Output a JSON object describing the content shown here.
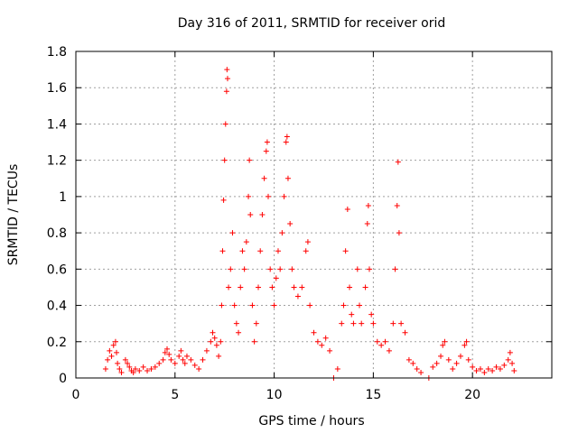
{
  "chart_data": {
    "type": "scatter",
    "title": "Day 316 of 2011, SRMTID for receiver orid",
    "xlabel": "GPS time / hours",
    "ylabel": "SRMTID / TECUs",
    "xlim": [
      0,
      24
    ],
    "ylim": [
      0,
      1.8
    ],
    "xticks": [
      0,
      5,
      10,
      15,
      20
    ],
    "xtick_labels": [
      "0",
      "5",
      "10",
      "15",
      "20"
    ],
    "yticks": [
      0,
      0.2,
      0.4,
      0.6,
      0.8,
      1,
      1.2,
      1.4,
      1.6,
      1.8
    ],
    "ytick_labels": [
      "0",
      "0.2",
      "0.4",
      "0.6",
      "0.8",
      "1",
      "1.2",
      "1.4",
      "1.6",
      "1.8"
    ],
    "grid": true,
    "marker": "+",
    "color": "#ff0000",
    "series": [
      {
        "name": "SRMTID",
        "points": [
          [
            1.5,
            0.05
          ],
          [
            1.6,
            0.1
          ],
          [
            1.7,
            0.15
          ],
          [
            1.8,
            0.12
          ],
          [
            1.9,
            0.18
          ],
          [
            2.0,
            0.2
          ],
          [
            2.05,
            0.14
          ],
          [
            2.1,
            0.08
          ],
          [
            2.2,
            0.05
          ],
          [
            2.3,
            0.03
          ],
          [
            2.5,
            0.1
          ],
          [
            2.6,
            0.08
          ],
          [
            2.7,
            0.06
          ],
          [
            2.8,
            0.04
          ],
          [
            2.9,
            0.03
          ],
          [
            3.0,
            0.05
          ],
          [
            3.2,
            0.04
          ],
          [
            3.4,
            0.06
          ],
          [
            3.6,
            0.04
          ],
          [
            3.8,
            0.05
          ],
          [
            4.0,
            0.06
          ],
          [
            4.2,
            0.08
          ],
          [
            4.4,
            0.1
          ],
          [
            4.5,
            0.14
          ],
          [
            4.6,
            0.16
          ],
          [
            4.7,
            0.13
          ],
          [
            4.8,
            0.1
          ],
          [
            5.0,
            0.08
          ],
          [
            5.2,
            0.12
          ],
          [
            5.3,
            0.15
          ],
          [
            5.4,
            0.1
          ],
          [
            5.5,
            0.08
          ],
          [
            5.6,
            0.12
          ],
          [
            5.8,
            0.1
          ],
          [
            6.0,
            0.07
          ],
          [
            6.2,
            0.05
          ],
          [
            6.4,
            0.1
          ],
          [
            6.6,
            0.15
          ],
          [
            6.8,
            0.2
          ],
          [
            6.9,
            0.25
          ],
          [
            7.0,
            0.22
          ],
          [
            7.1,
            0.18
          ],
          [
            7.2,
            0.12
          ],
          [
            7.3,
            0.2
          ],
          [
            7.35,
            0.4
          ],
          [
            7.4,
            0.7
          ],
          [
            7.45,
            0.98
          ],
          [
            7.5,
            1.2
          ],
          [
            7.55,
            1.4
          ],
          [
            7.6,
            1.58
          ],
          [
            7.62,
            1.7
          ],
          [
            7.65,
            1.65
          ],
          [
            7.7,
            0.5
          ],
          [
            7.8,
            0.6
          ],
          [
            7.9,
            0.8
          ],
          [
            8.0,
            0.4
          ],
          [
            8.1,
            0.3
          ],
          [
            8.2,
            0.25
          ],
          [
            8.3,
            0.5
          ],
          [
            8.4,
            0.7
          ],
          [
            8.5,
            0.6
          ],
          [
            8.6,
            0.75
          ],
          [
            8.7,
            1.0
          ],
          [
            8.75,
            1.2
          ],
          [
            8.8,
            0.9
          ],
          [
            8.9,
            0.4
          ],
          [
            9.0,
            0.2
          ],
          [
            9.1,
            0.3
          ],
          [
            9.2,
            0.5
          ],
          [
            9.3,
            0.7
          ],
          [
            9.4,
            0.9
          ],
          [
            9.5,
            1.1
          ],
          [
            9.6,
            1.25
          ],
          [
            9.65,
            1.3
          ],
          [
            9.7,
            1.0
          ],
          [
            9.8,
            0.6
          ],
          [
            9.9,
            0.5
          ],
          [
            10.0,
            0.4
          ],
          [
            10.1,
            0.55
          ],
          [
            10.2,
            0.7
          ],
          [
            10.3,
            0.6
          ],
          [
            10.4,
            0.8
          ],
          [
            10.5,
            1.0
          ],
          [
            10.6,
            1.3
          ],
          [
            10.65,
            1.33
          ],
          [
            10.7,
            1.1
          ],
          [
            10.8,
            0.85
          ],
          [
            10.9,
            0.6
          ],
          [
            11.0,
            0.5
          ],
          [
            11.2,
            0.45
          ],
          [
            11.4,
            0.5
          ],
          [
            11.6,
            0.7
          ],
          [
            11.7,
            0.75
          ],
          [
            11.8,
            0.4
          ],
          [
            12.0,
            0.25
          ],
          [
            12.2,
            0.2
          ],
          [
            12.4,
            0.18
          ],
          [
            12.6,
            0.22
          ],
          [
            12.8,
            0.15
          ],
          [
            13.0,
            0.0
          ],
          [
            13.2,
            0.05
          ],
          [
            13.4,
            0.3
          ],
          [
            13.5,
            0.4
          ],
          [
            13.6,
            0.7
          ],
          [
            13.7,
            0.93
          ],
          [
            13.8,
            0.5
          ],
          [
            13.9,
            0.35
          ],
          [
            14.0,
            0.3
          ],
          [
            14.2,
            0.6
          ],
          [
            14.3,
            0.4
          ],
          [
            14.4,
            0.3
          ],
          [
            14.6,
            0.5
          ],
          [
            14.7,
            0.85
          ],
          [
            14.75,
            0.95
          ],
          [
            14.8,
            0.6
          ],
          [
            14.9,
            0.35
          ],
          [
            15.0,
            0.3
          ],
          [
            15.2,
            0.2
          ],
          [
            15.4,
            0.18
          ],
          [
            15.6,
            0.2
          ],
          [
            15.8,
            0.15
          ],
          [
            16.0,
            0.3
          ],
          [
            16.1,
            0.6
          ],
          [
            16.2,
            0.95
          ],
          [
            16.25,
            1.19
          ],
          [
            16.3,
            0.8
          ],
          [
            16.4,
            0.3
          ],
          [
            16.6,
            0.25
          ],
          [
            16.8,
            0.1
          ],
          [
            17.0,
            0.08
          ],
          [
            17.2,
            0.05
          ],
          [
            17.4,
            0.03
          ],
          [
            17.8,
            0.0
          ],
          [
            18.0,
            0.06
          ],
          [
            18.2,
            0.08
          ],
          [
            18.4,
            0.12
          ],
          [
            18.5,
            0.18
          ],
          [
            18.6,
            0.2
          ],
          [
            18.8,
            0.1
          ],
          [
            19.0,
            0.05
          ],
          [
            19.2,
            0.08
          ],
          [
            19.4,
            0.12
          ],
          [
            19.6,
            0.18
          ],
          [
            19.7,
            0.2
          ],
          [
            19.8,
            0.1
          ],
          [
            20.0,
            0.06
          ],
          [
            20.2,
            0.04
          ],
          [
            20.4,
            0.05
          ],
          [
            20.6,
            0.03
          ],
          [
            20.8,
            0.05
          ],
          [
            21.0,
            0.04
          ],
          [
            21.2,
            0.06
          ],
          [
            21.4,
            0.05
          ],
          [
            21.6,
            0.07
          ],
          [
            21.8,
            0.1
          ],
          [
            21.9,
            0.14
          ],
          [
            22.0,
            0.08
          ],
          [
            22.1,
            0.04
          ]
        ]
      }
    ]
  }
}
